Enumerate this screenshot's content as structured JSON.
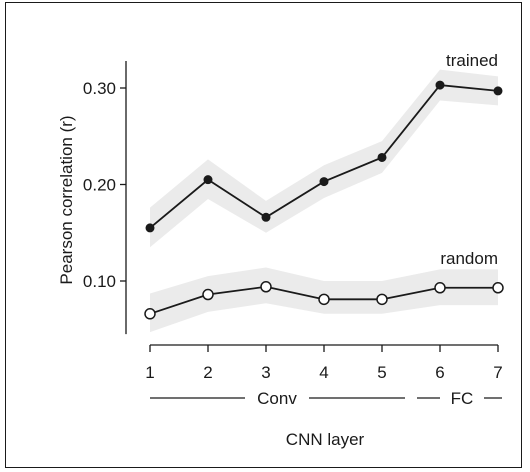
{
  "chart_data": {
    "type": "line",
    "x": [
      1,
      2,
      3,
      4,
      5,
      6,
      7
    ],
    "series": [
      {
        "name": "trained",
        "values": [
          0.155,
          0.205,
          0.166,
          0.203,
          0.228,
          0.303,
          0.297
        ],
        "ci_lower": [
          0.135,
          0.185,
          0.15,
          0.186,
          0.212,
          0.287,
          0.282
        ],
        "ci_upper": [
          0.176,
          0.226,
          0.183,
          0.22,
          0.245,
          0.319,
          0.312
        ],
        "marker": "filled-circle",
        "band_color": "#ebebeb"
      },
      {
        "name": "random",
        "values": [
          0.066,
          0.086,
          0.094,
          0.081,
          0.081,
          0.093,
          0.093
        ],
        "ci_lower": [
          0.047,
          0.068,
          0.077,
          0.066,
          0.066,
          0.075,
          0.075
        ],
        "ci_upper": [
          0.087,
          0.105,
          0.114,
          0.1,
          0.1,
          0.112,
          0.112
        ],
        "marker": "open-circle",
        "band_color": "#ebebeb"
      }
    ],
    "ylabel": "Pearson correlation (r)",
    "xlabel": "CNN layer",
    "ylim": [
      0.045,
      0.33
    ],
    "yticks": [
      0.1,
      0.2,
      0.3
    ],
    "ytick_labels": [
      "0.10",
      "0.20",
      "0.30"
    ],
    "xtick_labels": [
      "1",
      "2",
      "3",
      "4",
      "5",
      "6",
      "7"
    ],
    "groups": [
      {
        "label": "Conv",
        "from": 1,
        "to": 5
      },
      {
        "label": "FC",
        "from": 6,
        "to": 7
      }
    ],
    "grid": false,
    "colors": {
      "line": "#1a1a1a",
      "band": "#ebebeb",
      "text": "#1a1a1a"
    }
  }
}
